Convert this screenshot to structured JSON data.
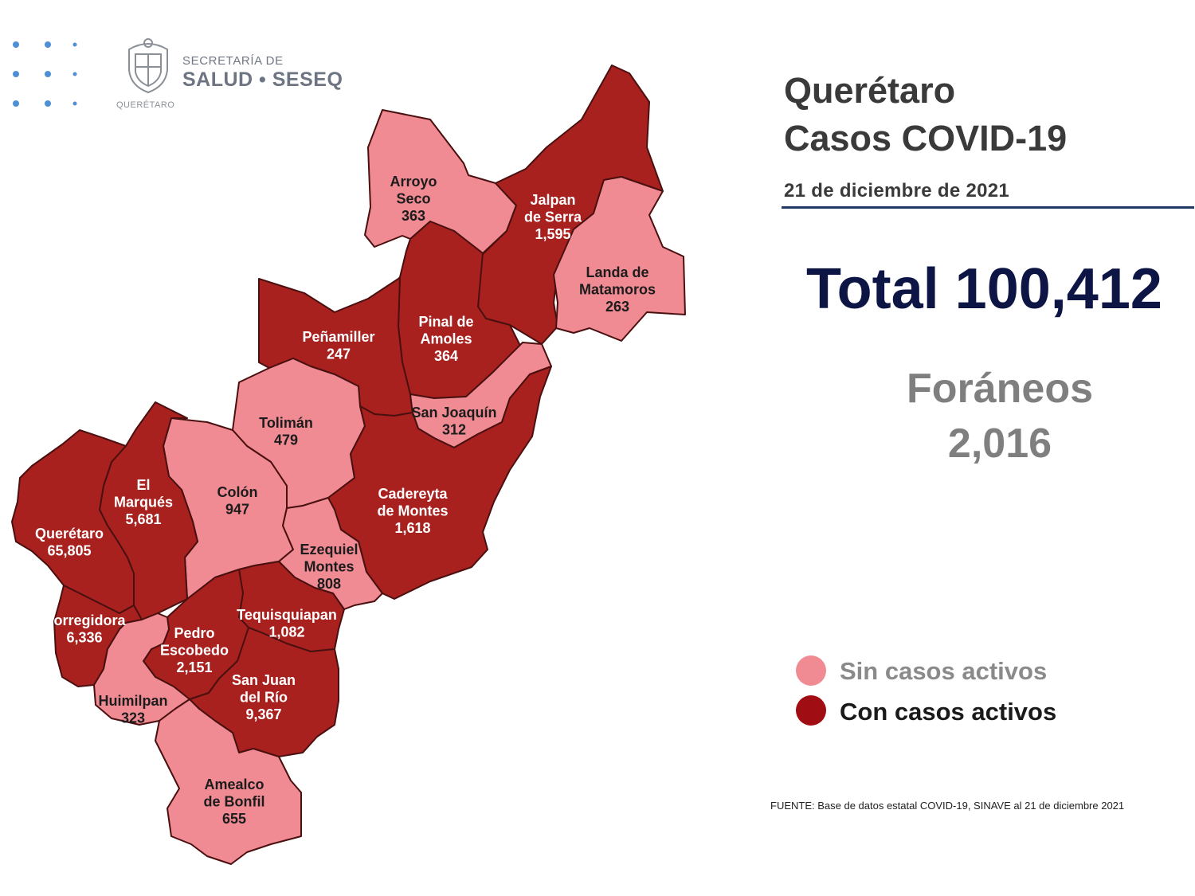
{
  "header": {
    "org_line1": "SECRETARÍA DE",
    "org_line2": "SALUD • SESEQ",
    "seal_caption": "QUERÉTARO",
    "seal_icon": "state-seal-icon",
    "dots_icon": "dot-grid-icon"
  },
  "title": {
    "line1": "Querétaro",
    "line2": "Casos COVID-19",
    "date": "21 de diciembre de 2021"
  },
  "total": "Total 100,412",
  "foraneos": {
    "label": "Foráneos",
    "value": "2,016"
  },
  "legend": {
    "sin": {
      "label": "Sin casos activos",
      "color": "#f08a93"
    },
    "con": {
      "label": "Con casos activos",
      "color": "#a00d12"
    }
  },
  "source": "FUENTE: Base de datos estatal COVID-19, SINAVE al 21 de diciembre 2021",
  "colors": {
    "active": "#a8211f",
    "inactive": "#f08a93",
    "border": "#4a1010"
  },
  "municipalities": [
    {
      "id": "arroyo-seco",
      "lines": [
        "Arroyo",
        "Seco",
        "363"
      ],
      "active": false
    },
    {
      "id": "jalpan",
      "lines": [
        "Jalpan",
        "de Serra",
        "1,595"
      ],
      "active": true
    },
    {
      "id": "landa",
      "lines": [
        "Landa de",
        "Matamoros",
        "263"
      ],
      "active": false
    },
    {
      "id": "pinal",
      "lines": [
        "Pinal de",
        "Amoles",
        "364"
      ],
      "active": true
    },
    {
      "id": "penamiller",
      "lines": [
        "Peñamiller",
        "247"
      ],
      "active": true
    },
    {
      "id": "san-joaquin",
      "lines": [
        "San Joaquín",
        "312"
      ],
      "active": false
    },
    {
      "id": "toliman",
      "lines": [
        "Tolimán",
        "479"
      ],
      "active": false
    },
    {
      "id": "cadereyta",
      "lines": [
        "Cadereyta",
        "de Montes",
        "1,618"
      ],
      "active": true
    },
    {
      "id": "colon",
      "lines": [
        "Colón",
        "947"
      ],
      "active": false
    },
    {
      "id": "el-marques",
      "lines": [
        "El",
        "Marqués",
        "5,681"
      ],
      "active": true
    },
    {
      "id": "queretaro",
      "lines": [
        "Querétaro",
        "65,805"
      ],
      "active": true
    },
    {
      "id": "ezequiel",
      "lines": [
        "Ezequiel",
        "Montes",
        "808"
      ],
      "active": false
    },
    {
      "id": "tequisquiapan",
      "lines": [
        "Tequisquiapan",
        "1,082"
      ],
      "active": true
    },
    {
      "id": "corregidora",
      "lines": [
        "Corregidora",
        "6,336"
      ],
      "active": true
    },
    {
      "id": "pedro-escobedo",
      "lines": [
        "Pedro",
        "Escobedo",
        "2,151"
      ],
      "active": true
    },
    {
      "id": "san-juan",
      "lines": [
        "San Juan",
        "del Río",
        "9,367"
      ],
      "active": true
    },
    {
      "id": "huimilpan",
      "lines": [
        "Huimilpan",
        "323"
      ],
      "active": false
    },
    {
      "id": "amealco",
      "lines": [
        "Amealco",
        "de Bonfil",
        "655"
      ],
      "active": false
    }
  ]
}
